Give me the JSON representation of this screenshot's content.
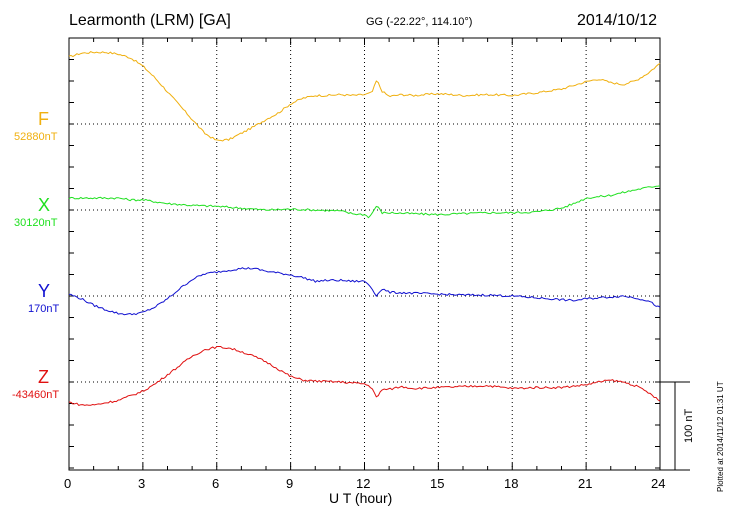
{
  "chart_data": {
    "type": "line",
    "title": "Learmonth (LRM)  [GA]",
    "coordinates": "GG (-22.22°, 114.10°)",
    "date": "2014/10/12",
    "xlabel": "U T (hour)",
    "xlim": [
      0,
      24
    ],
    "xticks": [
      "0",
      "3",
      "6",
      "9",
      "12",
      "15",
      "18",
      "21",
      "24"
    ],
    "scale_bar": {
      "label": "100 nT",
      "value_nT": 100
    },
    "plotted_note": "Plotted at 2014/11/12 01:31  UT",
    "grid": "dotted",
    "series": [
      {
        "name": "F",
        "baseline": "52880nT",
        "color": "#f0b010",
        "x": [
          0,
          0.5,
          1,
          1.5,
          2,
          2.5,
          3,
          3.5,
          4,
          4.5,
          5,
          5.5,
          6,
          6.5,
          7,
          7.5,
          8,
          8.5,
          9,
          9.5,
          10,
          10.5,
          11,
          11.5,
          12,
          12.3,
          12.5,
          12.7,
          13,
          13.5,
          14,
          14.5,
          15,
          16,
          17,
          18,
          19,
          20,
          20.5,
          21,
          21.5,
          22,
          22.5,
          23,
          23.5,
          24
        ],
        "y": [
          73,
          77,
          78,
          78,
          76,
          72,
          63,
          50,
          35,
          20,
          5,
          -10,
          -18,
          -17,
          -10,
          -3,
          5,
          12,
          22,
          28,
          31,
          31,
          32,
          31,
          32,
          34,
          48,
          36,
          30,
          32,
          31,
          32,
          33,
          31,
          32,
          31,
          34,
          38,
          42,
          46,
          49,
          45,
          43,
          47,
          55,
          66
        ]
      },
      {
        "name": "X",
        "baseline": "30120nT",
        "color": "#20e020",
        "x": [
          0,
          1,
          2,
          2.5,
          3,
          4,
          5,
          6,
          7,
          8,
          9,
          10,
          11,
          11.5,
          12,
          12.2,
          12.5,
          12.7,
          13,
          14,
          15,
          16,
          17,
          18,
          19,
          20,
          20.5,
          21,
          22,
          23,
          24
        ],
        "y": [
          13,
          13,
          13,
          11,
          11,
          7,
          5,
          4,
          2,
          0,
          1,
          0,
          -1,
          -4,
          -5,
          -8,
          5,
          -3,
          -3,
          -4,
          -5,
          -4,
          -3,
          -3,
          -2,
          2,
          7,
          13,
          16,
          22,
          27
        ]
      },
      {
        "name": "Y",
        "baseline": "170nT",
        "color": "#1010d0",
        "x": [
          0,
          0.5,
          1,
          1.5,
          2,
          2.5,
          3,
          3.5,
          4,
          4.5,
          5,
          5.5,
          6,
          6.5,
          7,
          7.5,
          8,
          8.5,
          9,
          9.5,
          10,
          10.5,
          11,
          11.5,
          12,
          12.2,
          12.5,
          12.7,
          13,
          14,
          15,
          16,
          17,
          18,
          19,
          20,
          20.5,
          21,
          21.5,
          22,
          22.5,
          23,
          23.5,
          24
        ],
        "y": [
          2,
          -3,
          -10,
          -15,
          -19,
          -20,
          -18,
          -12,
          -3,
          8,
          18,
          24,
          26,
          28,
          30,
          30,
          27,
          25,
          23,
          20,
          16,
          17,
          17,
          16,
          16,
          12,
          0,
          8,
          4,
          3,
          2,
          1,
          1,
          0,
          -2,
          -4,
          -5,
          -3,
          -2,
          -1,
          0,
          -2,
          -5,
          -13
        ]
      },
      {
        "name": "Z",
        "baseline": "-43460nT",
        "color": "#e01010",
        "x": [
          0,
          0.5,
          1,
          2,
          3,
          3.5,
          4,
          4.5,
          5,
          5.5,
          6,
          6.5,
          7,
          7.5,
          8,
          8.5,
          9,
          9.5,
          10,
          11,
          12,
          12.3,
          12.5,
          12.7,
          13,
          13.5,
          14,
          15,
          16,
          17,
          18,
          19,
          20,
          21,
          21.5,
          22,
          22.5,
          23,
          23.5,
          24
        ],
        "y": [
          -22,
          -25,
          -25,
          -20,
          -10,
          -2,
          8,
          18,
          28,
          35,
          38,
          37,
          33,
          28,
          22,
          14,
          6,
          2,
          1,
          0,
          -2,
          -6,
          -18,
          -8,
          -8,
          -5,
          -7,
          -6,
          -5,
          -4,
          -7,
          -6,
          -6,
          -3,
          0,
          2,
          0,
          -4,
          -11,
          -21
        ]
      }
    ]
  }
}
